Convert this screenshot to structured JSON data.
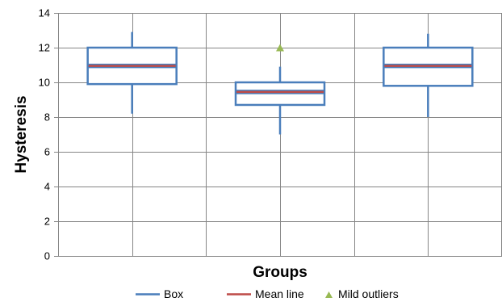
{
  "chart_data": {
    "type": "box",
    "xlabel": "Groups",
    "ylabel": "Hysteresis",
    "ylim": [
      0,
      14
    ],
    "yticks": [
      0,
      2,
      4,
      6,
      8,
      10,
      12,
      14
    ],
    "grid": true,
    "legend_position": "bottom",
    "groups": [
      {
        "q1": 9.9,
        "q3": 12.0,
        "whisker_low": 8.2,
        "whisker_high": 12.9,
        "mean": 10.95,
        "outliers": []
      },
      {
        "q1": 8.7,
        "q3": 10.0,
        "whisker_low": 7.0,
        "whisker_high": 10.9,
        "mean": 9.45,
        "outliers": [
          12.0
        ]
      },
      {
        "q1": 9.8,
        "q3": 12.0,
        "whisker_low": 8.0,
        "whisker_high": 12.8,
        "mean": 10.95,
        "outliers": []
      }
    ],
    "legend": [
      {
        "label": "Box",
        "kind": "line",
        "color": "#4a7ebb"
      },
      {
        "label": "Mean line",
        "kind": "line",
        "color": "#be4b48"
      },
      {
        "label": "Mild outliers",
        "kind": "triangle",
        "color": "#98b954"
      }
    ],
    "colors": {
      "box": "#4a7ebb",
      "mean": "#be4b48",
      "outlier": "#98b954",
      "grid": "#868686"
    }
  }
}
